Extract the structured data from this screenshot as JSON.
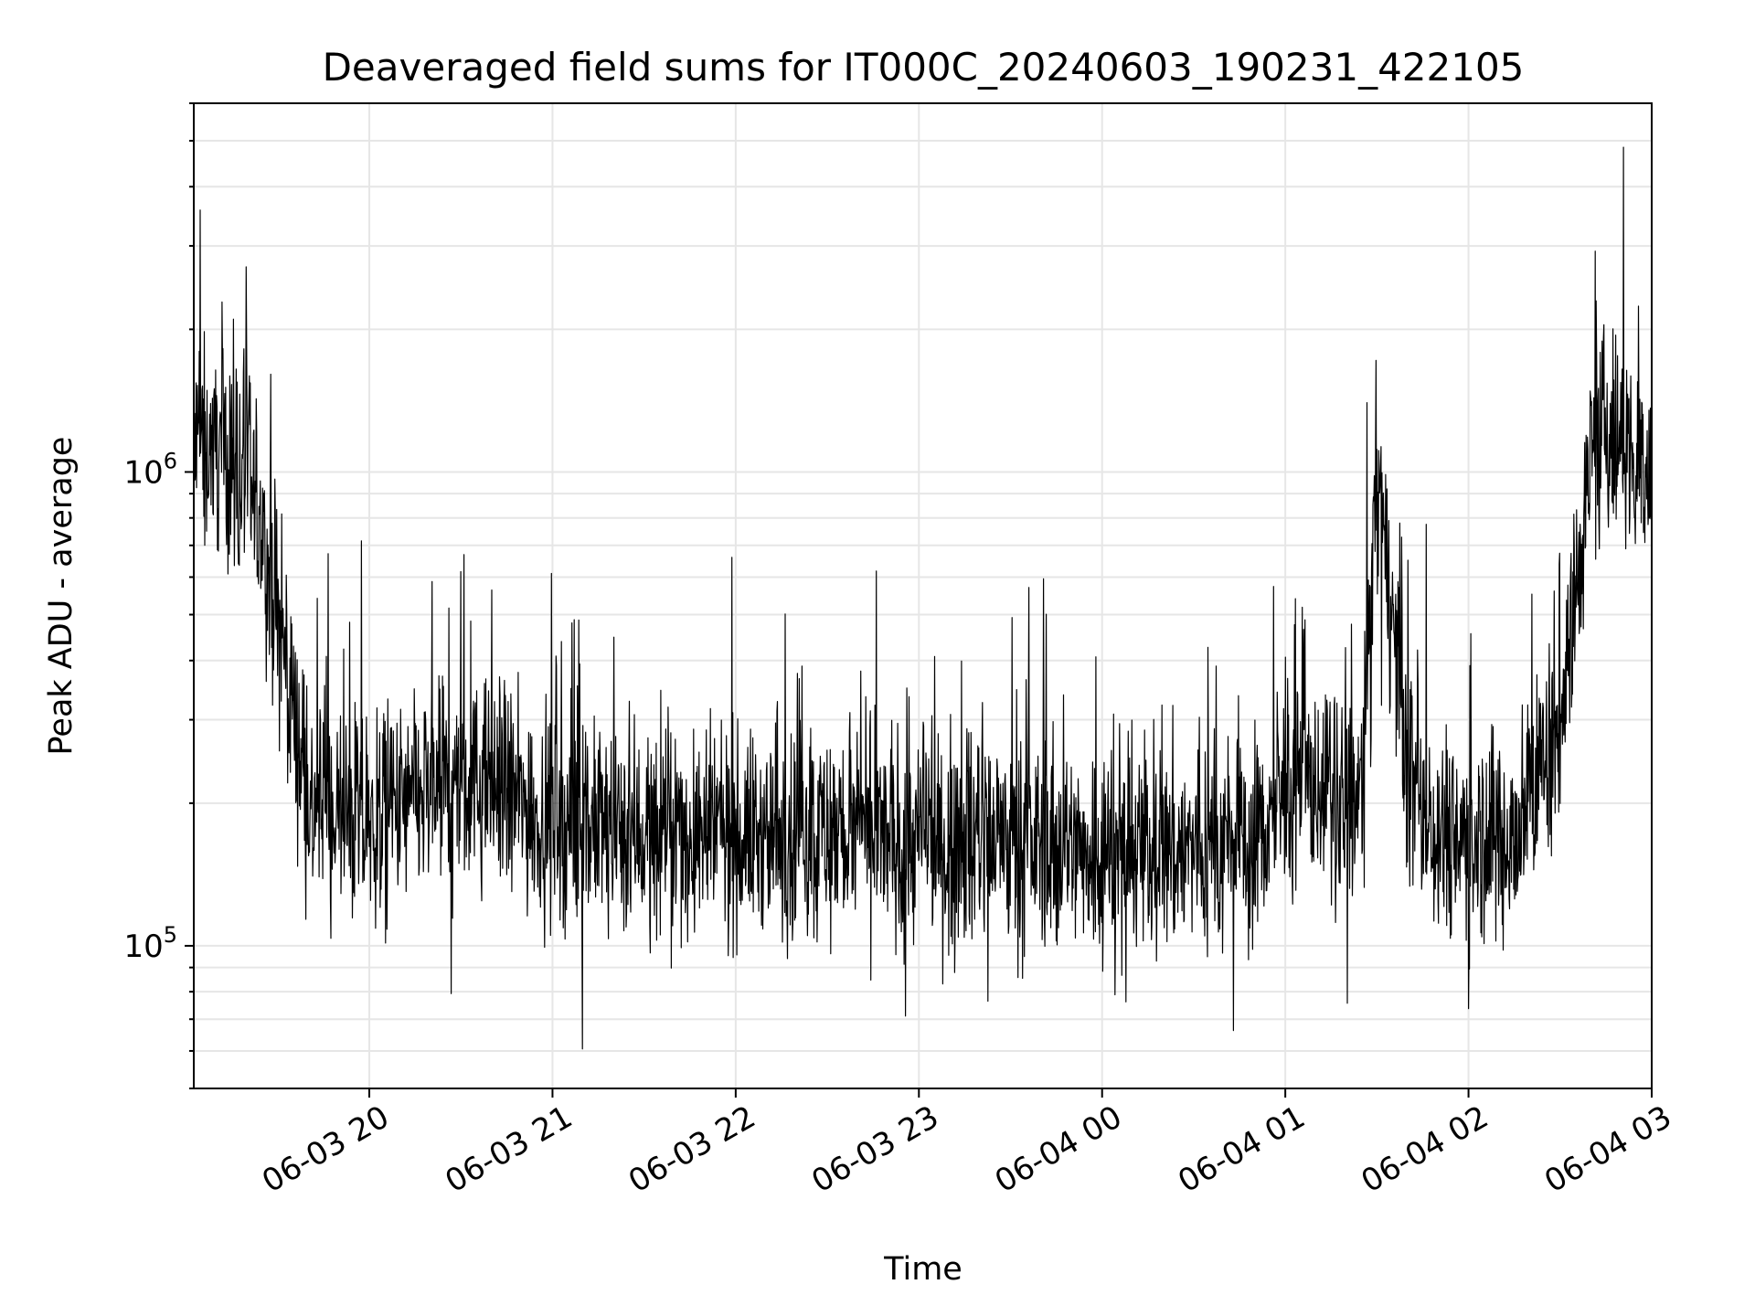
{
  "chart_data": {
    "type": "line",
    "title": "Deaveraged field sums for IT000C_20240603_190231_422105",
    "xlabel": "Time",
    "ylabel": "Peak ADU - average",
    "yscale": "log",
    "ylim": [
      50000,
      6000000
    ],
    "xlim": [
      "2024-06-03 19:02:31",
      "2024-06-04 03:00:00"
    ],
    "grid": true,
    "line_color": "#000000",
    "x_ticks": [
      "06-03 20",
      "06-03 21",
      "06-03 22",
      "06-03 23",
      "06-04 00",
      "06-04 01",
      "06-04 02",
      "06-04 03"
    ],
    "y_ticks": [
      {
        "base": "10",
        "exp": "5",
        "value": 100000
      },
      {
        "base": "10",
        "exp": "6",
        "value": 1000000
      }
    ],
    "series": [
      {
        "x": [
          "2024-06-03 19:02:31",
          "2024-06-03 19:10",
          "2024-06-03 19:20",
          "2024-06-03 19:30",
          "2024-06-03 19:35",
          "2024-06-03 19:40",
          "2024-06-03 19:50",
          "2024-06-03 20:00",
          "2024-06-03 20:20",
          "2024-06-03 20:40",
          "2024-06-03 21:00",
          "2024-06-03 21:30",
          "2024-06-03 22:00",
          "2024-06-03 22:30",
          "2024-06-03 23:00",
          "2024-06-03 23:30",
          "2024-06-04 00:00",
          "2024-06-04 00:30",
          "2024-06-04 00:50",
          "2024-06-04 01:00",
          "2024-06-04 01:10",
          "2024-06-04 01:20",
          "2024-06-04 01:25",
          "2024-06-04 01:30",
          "2024-06-04 01:35",
          "2024-06-04 01:40",
          "2024-06-04 01:50",
          "2024-06-04 02:00",
          "2024-06-04 02:15",
          "2024-06-04 02:30",
          "2024-06-04 02:35",
          "2024-06-04 02:40",
          "2024-06-04 02:45",
          "2024-06-04 02:50",
          "2024-06-04 03:00"
        ],
        "values": [
          1100000,
          1150000,
          1000000,
          480000,
          330000,
          200000,
          185000,
          180000,
          210000,
          220000,
          180000,
          175000,
          170000,
          175000,
          165000,
          165000,
          160000,
          160000,
          165000,
          210000,
          220000,
          190000,
          210000,
          1000000,
          500000,
          230000,
          180000,
          170000,
          170000,
          300000,
          550000,
          1100000,
          1200000,
          1100000,
          1050000
        ]
      }
    ]
  }
}
